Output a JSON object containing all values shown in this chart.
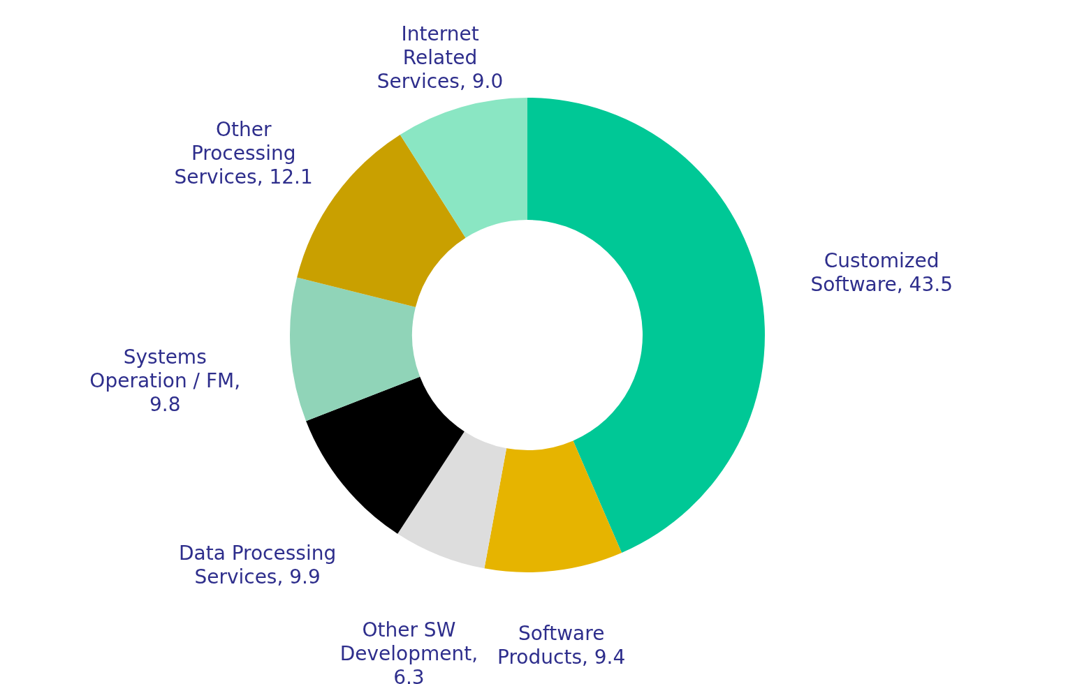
{
  "chart_data": {
    "type": "donut",
    "categories": [
      "Customized Software, 43.5",
      "Software Products, 9.4",
      "Other SW Development, 6.3",
      "Data Processing Services, 9.9",
      "Systems Operation / FM, 9.8",
      "Other Processing Services, 12.1",
      "Internet Related Services, 9.0"
    ],
    "values": [
      43.5,
      9.4,
      6.3,
      9.9,
      9.8,
      12.1,
      9.0
    ],
    "colors": [
      "#00c896",
      "#e6b400",
      "#dddddd",
      "#000000",
      "#90d4b8",
      "#c9a000",
      "#8ae6c3"
    ],
    "legend": false
  }
}
